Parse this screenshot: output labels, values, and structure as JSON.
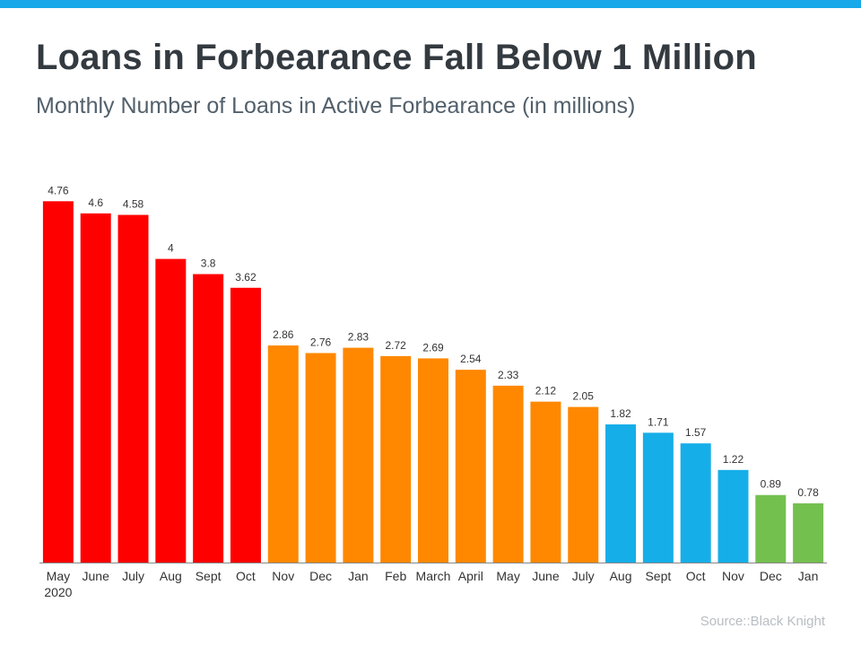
{
  "header": {
    "title": "Loans in Forbearance Fall Below 1 Million",
    "subtitle": "Monthly Number of Loans in Active Forbearance (in millions)"
  },
  "footer": {
    "source": "Source::Black Knight"
  },
  "colors": {
    "accent_bar": "#16a8e8",
    "red": "#ff0000",
    "orange": "#ff8800",
    "blue": "#16aee8",
    "green": "#74c04f"
  },
  "chart_data": {
    "type": "bar",
    "title": "Loans in Forbearance Fall Below 1 Million",
    "subtitle": "Monthly Number of Loans in Active Forbearance (in millions)",
    "xlabel": "",
    "ylabel": "",
    "ylim": [
      0,
      5
    ],
    "grid": false,
    "legend": "none",
    "categories": [
      "May",
      "June",
      "July",
      "Aug",
      "Sept",
      "Oct",
      "Nov",
      "Dec",
      "Jan",
      "Feb",
      "March",
      "April",
      "May",
      "June",
      "July",
      "Aug",
      "Sept",
      "Oct",
      "Nov",
      "Dec",
      "Jan"
    ],
    "category_sublabels": [
      "2020",
      "",
      "",
      "",
      "",
      "",
      "",
      "",
      "",
      "",
      "",
      "",
      "",
      "",
      "",
      "",
      "",
      "",
      "",
      "",
      ""
    ],
    "values": [
      4.76,
      4.6,
      4.58,
      4,
      3.8,
      3.62,
      2.86,
      2.76,
      2.83,
      2.72,
      2.69,
      2.54,
      2.33,
      2.12,
      2.05,
      1.82,
      1.71,
      1.57,
      1.22,
      0.89,
      0.78
    ],
    "data_labels": [
      "4.76",
      "4.6",
      "4.58",
      "4",
      "3.8",
      "3.62",
      "2.86",
      "2.76",
      "2.83",
      "2.72",
      "2.69",
      "2.54",
      "2.33",
      "2.12",
      "2.05",
      "1.82",
      "1.71",
      "1.57",
      "1.22",
      "0.89",
      "0.78"
    ],
    "bar_colors": [
      "#ff0000",
      "#ff0000",
      "#ff0000",
      "#ff0000",
      "#ff0000",
      "#ff0000",
      "#ff8800",
      "#ff8800",
      "#ff8800",
      "#ff8800",
      "#ff8800",
      "#ff8800",
      "#ff8800",
      "#ff8800",
      "#ff8800",
      "#16aee8",
      "#16aee8",
      "#16aee8",
      "#16aee8",
      "#74c04f",
      "#74c04f"
    ]
  }
}
